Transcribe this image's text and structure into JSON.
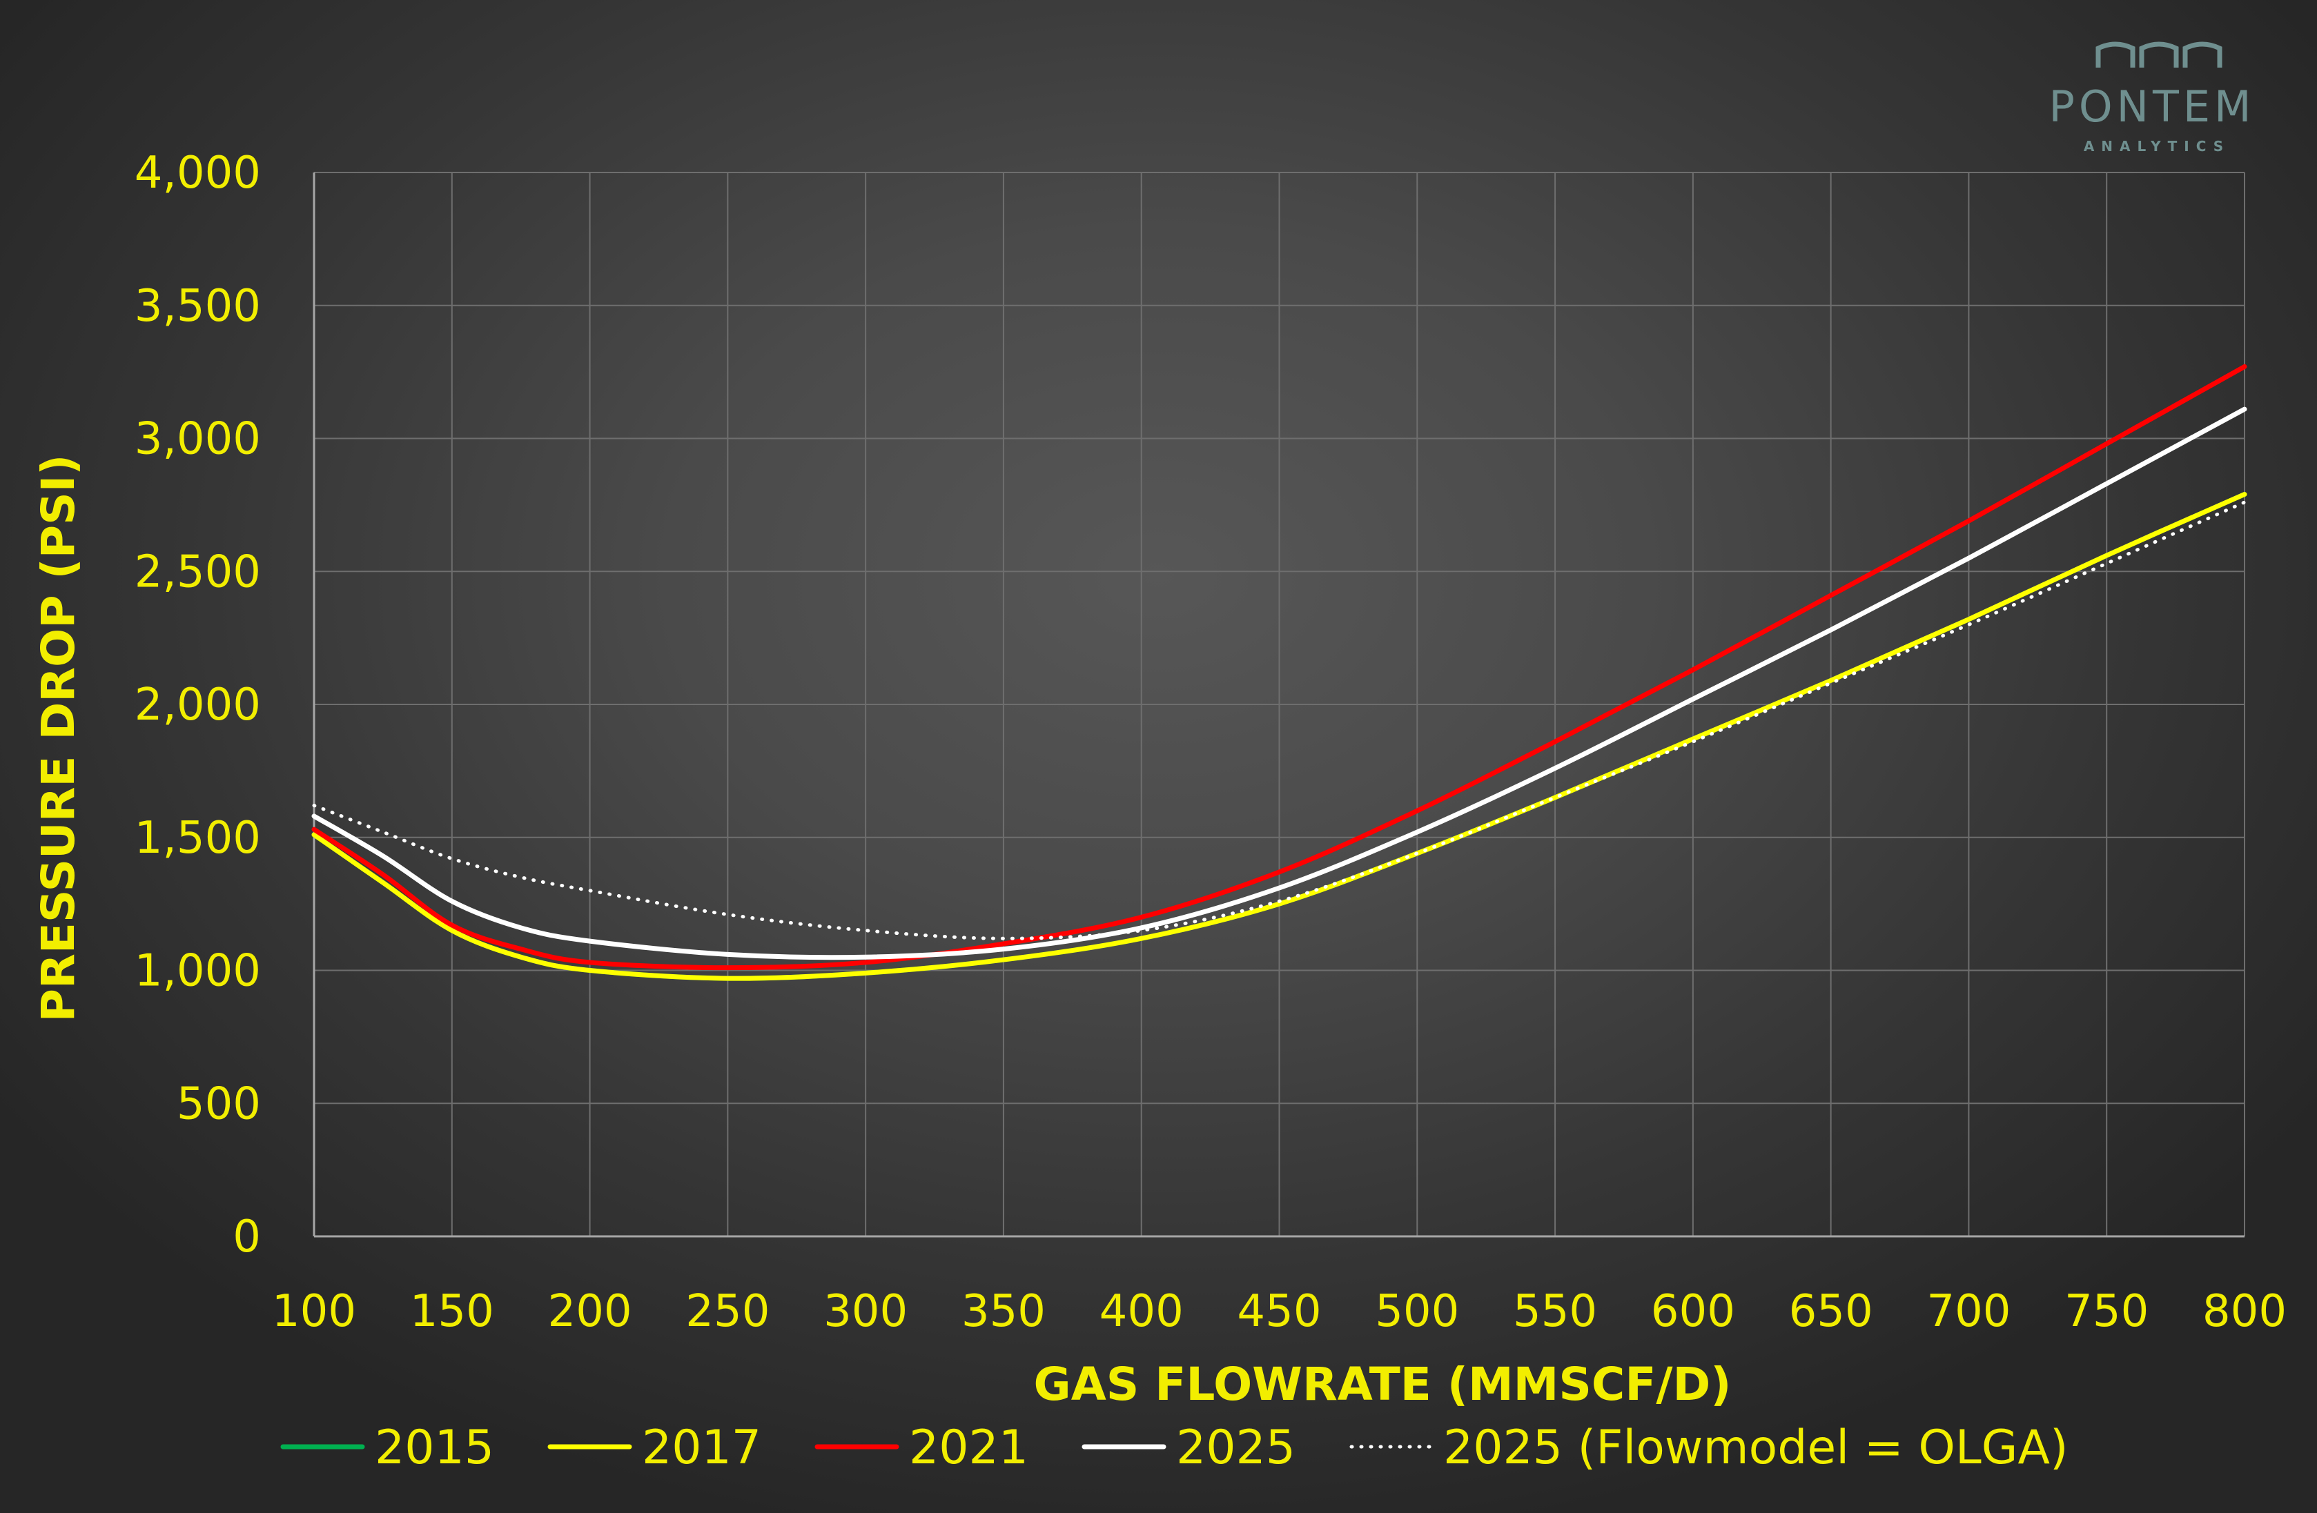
{
  "logo": {
    "name": "PONTEM",
    "sub": "ANALYTICS",
    "color": "#6f8f8f",
    "accent": "#3fd0d8"
  },
  "chart_data": {
    "type": "line",
    "xlabel": "GAS FLOWRATE (MMSCF/D)",
    "ylabel": "PRESSURE DROP (PSI)",
    "xlim": [
      100,
      800
    ],
    "ylim": [
      0,
      4000
    ],
    "x_ticks": [
      "100",
      "150",
      "200",
      "250",
      "300",
      "350",
      "400",
      "450",
      "500",
      "550",
      "600",
      "650",
      "700",
      "750",
      "800"
    ],
    "y_ticks": [
      "0",
      "500",
      "1,000",
      "1,500",
      "2,000",
      "2,500",
      "3,000",
      "3,500",
      "4,000"
    ],
    "grid": true,
    "legend_position": "bottom",
    "x": [
      100,
      125,
      150,
      175,
      200,
      250,
      300,
      350,
      400,
      450,
      500,
      550,
      600,
      650,
      700,
      750,
      800
    ],
    "series": [
      {
        "name": "2015",
        "color": "#00b050",
        "style": "solid",
        "values": [
          1510,
          1330,
          1150,
          1050,
          1000,
          970,
          990,
          1040,
          1120,
          1250,
          1440,
          1650,
          1870,
          2090,
          2320,
          2560,
          2790
        ]
      },
      {
        "name": "2017",
        "color": "#ffff00",
        "style": "solid",
        "values": [
          1510,
          1330,
          1150,
          1050,
          1000,
          970,
          990,
          1040,
          1120,
          1250,
          1440,
          1650,
          1870,
          2090,
          2320,
          2560,
          2790
        ]
      },
      {
        "name": "2021",
        "color": "#ff0000",
        "style": "solid",
        "values": [
          1530,
          1360,
          1170,
          1080,
          1030,
          1010,
          1030,
          1100,
          1200,
          1370,
          1600,
          1860,
          2130,
          2410,
          2690,
          2980,
          3270
        ]
      },
      {
        "name": "2025",
        "color": "#ffffff",
        "style": "solid",
        "values": [
          1580,
          1430,
          1260,
          1160,
          1110,
          1060,
          1050,
          1080,
          1160,
          1310,
          1520,
          1760,
          2020,
          2280,
          2550,
          2830,
          3110
        ]
      },
      {
        "name": "2025 (Flowmodel = OLGA)",
        "color": "#ffffff",
        "style": "dotted",
        "values": [
          1620,
          1520,
          1420,
          1350,
          1300,
          1210,
          1150,
          1120,
          1150,
          1260,
          1440,
          1650,
          1860,
          2080,
          2300,
          2530,
          2760
        ]
      }
    ]
  }
}
